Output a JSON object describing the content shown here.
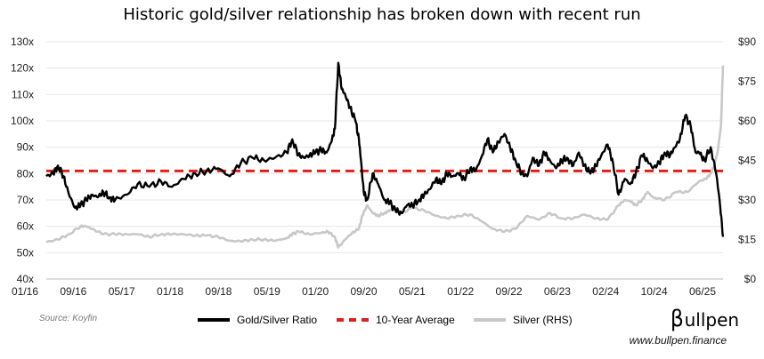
{
  "chart_data": {
    "type": "line",
    "title": "Historic gold/silver relationship has broken down with recent run",
    "x_tick_labels": [
      "01/16",
      "09/16",
      "05/17",
      "01/18",
      "09/18",
      "05/19",
      "01/20",
      "09/20",
      "05/21",
      "01/22",
      "09/22",
      "06/23",
      "02/24",
      "10/24",
      "06/25"
    ],
    "y_left": {
      "min": 40,
      "max": 130,
      "ticks": [
        40,
        50,
        60,
        70,
        80,
        90,
        100,
        110,
        120,
        130
      ],
      "suffix": "x"
    },
    "y_right": {
      "min": 0,
      "max": 90,
      "ticks": [
        0,
        15,
        30,
        45,
        60,
        75,
        90
      ],
      "prefix": "$"
    },
    "x_range": [
      2016.0,
      2025.85
    ],
    "series": [
      {
        "name": "Gold/Silver Ratio",
        "axis": "left",
        "color": "#000000",
        "x": [
          2016.0,
          2016.1,
          2016.17,
          2016.25,
          2016.33,
          2016.42,
          2016.5,
          2016.58,
          2016.67,
          2016.75,
          2016.83,
          2016.92,
          2017.0,
          2017.17,
          2017.33,
          2017.5,
          2017.67,
          2017.83,
          2018.0,
          2018.17,
          2018.33,
          2018.5,
          2018.67,
          2018.83,
          2019.0,
          2019.17,
          2019.33,
          2019.5,
          2019.58,
          2019.67,
          2019.75,
          2019.83,
          2019.92,
          2020.0,
          2020.08,
          2020.15,
          2020.2,
          2020.25,
          2020.3,
          2020.35,
          2020.42,
          2020.5,
          2020.55,
          2020.58,
          2020.62,
          2020.67,
          2020.75,
          2020.83,
          2020.92,
          2021.0,
          2021.08,
          2021.17,
          2021.25,
          2021.33,
          2021.42,
          2021.5,
          2021.58,
          2021.67,
          2021.75,
          2021.83,
          2021.92,
          2022.0,
          2022.08,
          2022.17,
          2022.25,
          2022.33,
          2022.42,
          2022.5,
          2022.58,
          2022.67,
          2022.75,
          2022.83,
          2022.92,
          2023.0,
          2023.08,
          2023.17,
          2023.25,
          2023.33,
          2023.42,
          2023.5,
          2023.58,
          2023.67,
          2023.75,
          2023.83,
          2023.92,
          2024.0,
          2024.08,
          2024.17,
          2024.25,
          2024.33,
          2024.42,
          2024.5,
          2024.58,
          2024.67,
          2024.75,
          2024.83,
          2024.92,
          2025.0,
          2025.08,
          2025.15,
          2025.22,
          2025.3,
          2025.38,
          2025.45,
          2025.5,
          2025.58,
          2025.67,
          2025.75,
          2025.8,
          2025.85
        ],
        "y": [
          79,
          80,
          83,
          79,
          72,
          67,
          68,
          70,
          72,
          71,
          73,
          71,
          70,
          72,
          76,
          75,
          77,
          75,
          78,
          80,
          81,
          82,
          79,
          84,
          86,
          85,
          86,
          88,
          93,
          87,
          86,
          87,
          88,
          89,
          88,
          92,
          97,
          122,
          112,
          110,
          105,
          100,
          93,
          85,
          73,
          70,
          80,
          76,
          70,
          69,
          66,
          65,
          68,
          68,
          70,
          72,
          74,
          78,
          76,
          80,
          79,
          80,
          78,
          82,
          81,
          86,
          93,
          88,
          92,
          95,
          90,
          85,
          80,
          79,
          86,
          83,
          88,
          85,
          82,
          85,
          86,
          83,
          88,
          83,
          80,
          83,
          87,
          91,
          84,
          72,
          78,
          76,
          80,
          87,
          85,
          82,
          84,
          88,
          87,
          90,
          93,
          102,
          98,
          88,
          88,
          85,
          90,
          80,
          70,
          56
        ]
      },
      {
        "name": "Silver (RHS)",
        "axis": "right",
        "color": "#c8c8c8",
        "x": [
          2016.0,
          2016.17,
          2016.33,
          2016.5,
          2016.58,
          2016.67,
          2016.83,
          2017.0,
          2017.17,
          2017.33,
          2017.5,
          2017.67,
          2017.83,
          2018.0,
          2018.17,
          2018.33,
          2018.5,
          2018.67,
          2018.83,
          2019.0,
          2019.17,
          2019.33,
          2019.5,
          2019.58,
          2019.67,
          2019.83,
          2020.0,
          2020.1,
          2020.2,
          2020.25,
          2020.35,
          2020.45,
          2020.55,
          2020.6,
          2020.67,
          2020.75,
          2020.83,
          2020.92,
          2021.0,
          2021.08,
          2021.17,
          2021.33,
          2021.5,
          2021.67,
          2021.83,
          2022.0,
          2022.17,
          2022.33,
          2022.5,
          2022.67,
          2022.83,
          2023.0,
          2023.17,
          2023.33,
          2023.5,
          2023.67,
          2023.83,
          2024.0,
          2024.17,
          2024.33,
          2024.42,
          2024.5,
          2024.58,
          2024.67,
          2024.75,
          2024.83,
          2025.0,
          2025.17,
          2025.33,
          2025.5,
          2025.6,
          2025.67,
          2025.72,
          2025.77,
          2025.82,
          2025.85
        ],
        "y": [
          14,
          15,
          17,
          20,
          20,
          19,
          17,
          17,
          17,
          17,
          16,
          17,
          17,
          17,
          16.5,
          16.5,
          16,
          14.5,
          14.3,
          15,
          15,
          14.5,
          15.5,
          17,
          18,
          17,
          17.5,
          18,
          16,
          12,
          15,
          17.5,
          19,
          24,
          28,
          25,
          24,
          25,
          26,
          27,
          25,
          27,
          26,
          24,
          23,
          24,
          24.5,
          22,
          19,
          18,
          19,
          24,
          22.5,
          25,
          23,
          23,
          24.5,
          23,
          22.5,
          28,
          30,
          29.5,
          28,
          30,
          33,
          31,
          30,
          33,
          33,
          37,
          38,
          40,
          43,
          48,
          58,
          81
        ]
      }
    ],
    "reference_lines": [
      {
        "name": "10-Year Average",
        "axis": "left",
        "y": 81,
        "color": "#e0201c",
        "style": "dashed"
      }
    ],
    "legend": [
      "Gold/Silver Ratio",
      "10-Year Average",
      "Silver (RHS)"
    ],
    "legend_position": "bottom"
  },
  "source": "Source: Koyfin",
  "brand": {
    "logo_b": "β",
    "logo_rest": "ullpen",
    "website": "www.bullpen.finance"
  }
}
